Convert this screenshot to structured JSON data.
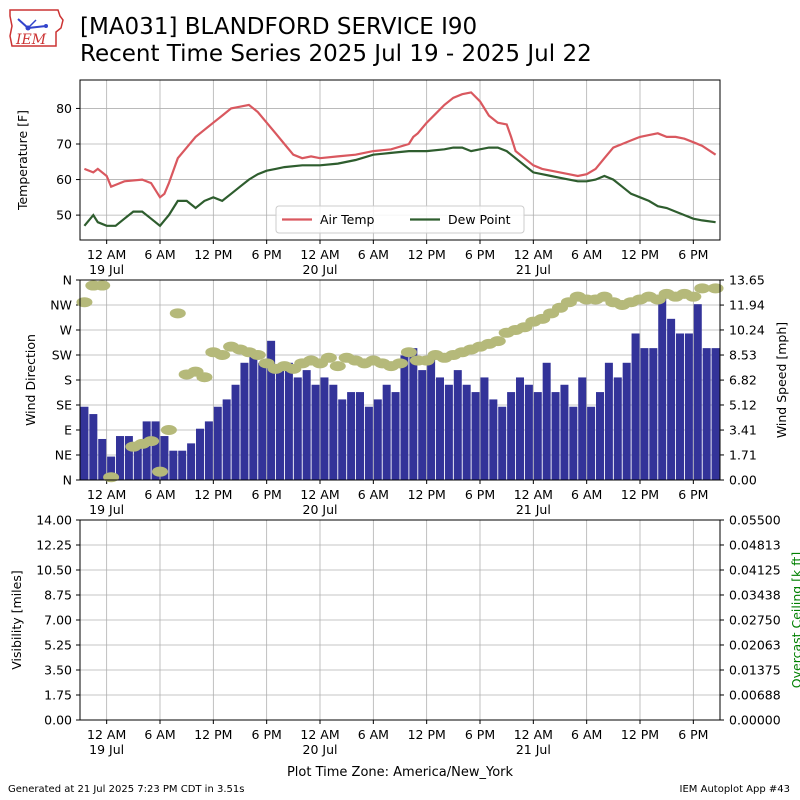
{
  "header": {
    "title_line1": "[MA031] BLANDFORD SERVICE I90",
    "title_line2": "Recent Time Series 2025 Jul 19 - 2025 Jul 22",
    "logo_text": "IEM"
  },
  "footer": {
    "generated": "Generated at 21 Jul 2025 7:23 PM CDT in 3.51s",
    "app": "IEM Autoplot App #43",
    "timezone": "Plot Time Zone: America/New_York"
  },
  "colors": {
    "air_temp": "#d9585f",
    "dew_point": "#2e5d2e",
    "wind_speed_bar": "#333399",
    "wind_dir_marker": "#b5b97a",
    "ceiling_axis": "#008000",
    "grid": "#b0b0b0"
  },
  "chart_data": [
    {
      "type": "line",
      "ylabel": "Temperature [F]",
      "ylim": [
        43,
        88
      ],
      "yticks": [
        50,
        60,
        70,
        80
      ],
      "x_units": "hours since 2025-07-19 00:00",
      "xlim": [
        -3,
        69
      ],
      "x_ticks": [
        0,
        6,
        12,
        18,
        24,
        30,
        36,
        42,
        48,
        54,
        60,
        66
      ],
      "x_tick_labels": [
        "12 AM",
        "6 AM",
        "12 PM",
        "6 PM",
        "12 AM",
        "6 AM",
        "12 PM",
        "6 PM",
        "12 AM",
        "6 AM",
        "12 PM",
        "6 PM"
      ],
      "x_date_labels": [
        {
          "at": 0,
          "label": "19 Jul"
        },
        {
          "at": 24,
          "label": "20 Jul"
        },
        {
          "at": 48,
          "label": "21 Jul"
        }
      ],
      "grid": true,
      "legend": "bottom-center",
      "series": [
        {
          "name": "Air Temp",
          "x": [
            -2.5,
            -1.5,
            -1,
            0,
            0.5,
            1,
            2,
            4,
            5,
            6,
            6.5,
            7,
            8,
            9,
            10,
            11,
            12,
            13,
            14,
            15,
            16,
            17,
            18,
            19,
            20,
            21,
            22,
            23,
            24,
            26,
            28,
            30,
            32,
            34,
            34.5,
            35,
            36,
            37,
            38,
            39,
            40,
            41,
            42,
            43,
            44,
            45,
            45.5,
            46,
            47,
            48,
            49,
            50,
            51,
            52,
            53,
            54,
            55,
            56,
            57,
            58,
            59,
            60,
            61,
            62,
            63,
            64,
            65,
            66,
            67,
            68.5
          ],
          "values": [
            63,
            62,
            63,
            61,
            58,
            58.5,
            59.5,
            60,
            59,
            55,
            56,
            59,
            66,
            69,
            72,
            74,
            76,
            78,
            80,
            80.5,
            81,
            79,
            76,
            73,
            70,
            67,
            66,
            66.5,
            66,
            66.5,
            67,
            68,
            68.5,
            70,
            72,
            73,
            76,
            78.5,
            81,
            83,
            84,
            84.5,
            82,
            78,
            76,
            75.5,
            72,
            68,
            66,
            64,
            63,
            62.5,
            62,
            61.5,
            61,
            61.5,
            63,
            66,
            69,
            70,
            71,
            72,
            72.5,
            73,
            72,
            72,
            71.5,
            70.5,
            69.5,
            67
          ]
        },
        {
          "name": "Dew Point",
          "x": [
            -2.5,
            -1.5,
            -1,
            0,
            1,
            2,
            3,
            4,
            5,
            6,
            6.5,
            7,
            8,
            9,
            10,
            11,
            12,
            13,
            14,
            15,
            16,
            17,
            18,
            19,
            20,
            22,
            24,
            26,
            28,
            30,
            32,
            34,
            36,
            38,
            39,
            40,
            41,
            42,
            43,
            44,
            45,
            46,
            47,
            48,
            49,
            50,
            51,
            52,
            53,
            54,
            55,
            56,
            57,
            58,
            59,
            60,
            61,
            62,
            63,
            64,
            65,
            66,
            67,
            68.5
          ],
          "values": [
            47,
            50,
            48,
            47,
            47,
            49,
            51,
            51,
            49,
            47,
            48.5,
            50,
            54,
            54,
            52,
            54,
            55,
            54,
            56,
            58,
            60,
            61.5,
            62.5,
            63,
            63.5,
            64,
            64,
            64.5,
            65.5,
            67,
            67.5,
            68,
            68,
            68.5,
            69,
            69,
            68,
            68.5,
            69,
            69,
            68,
            66,
            64,
            62,
            61.5,
            61,
            60.5,
            60,
            59.5,
            59.5,
            60,
            61,
            60,
            58,
            56,
            55,
            54,
            52.5,
            52,
            51,
            50,
            49,
            48.5,
            48
          ]
        }
      ]
    },
    {
      "type": "bar",
      "ylabel": "Wind Direction",
      "y2label": "Wind Speed [mph]",
      "direction_ticks": [
        "N",
        "NW",
        "W",
        "SW",
        "S",
        "SE",
        "E",
        "NE",
        "N"
      ],
      "direction_tick_values": [
        360,
        315,
        270,
        225,
        180,
        135,
        90,
        45,
        0
      ],
      "y2lim": [
        0,
        13.65
      ],
      "y2ticks": [
        "0.00",
        "1.71",
        "3.41",
        "5.12",
        "6.82",
        "8.53",
        "10.24",
        "11.94",
        "13.65"
      ],
      "grid": true,
      "series": [
        {
          "name": "Wind Speed",
          "x": [
            -2.5,
            -1.5,
            -0.5,
            0.5,
            1.5,
            2.5,
            3.5,
            4.5,
            5.5,
            6.5,
            7.5,
            8.5,
            9.5,
            10.5,
            11.5,
            12.5,
            13.5,
            14.5,
            15.5,
            16.5,
            17.5,
            18.5,
            19.5,
            20.5,
            21.5,
            22.5,
            23.5,
            24.5,
            25.5,
            26.5,
            27.5,
            28.5,
            29.5,
            30.5,
            31.5,
            32.5,
            33.5,
            34.5,
            35.5,
            36.5,
            37.5,
            38.5,
            39.5,
            40.5,
            41.5,
            42.5,
            43.5,
            44.5,
            45.5,
            46.5,
            47.5,
            48.5,
            49.5,
            50.5,
            51.5,
            52.5,
            53.5,
            54.5,
            55.5,
            56.5,
            57.5,
            58.5,
            59.5,
            60.5,
            61.5,
            62.5,
            63.5,
            64.5,
            65.5,
            66.5,
            67.5,
            68.5
          ],
          "values": [
            5.0,
            4.5,
            2.8,
            1.6,
            3.0,
            3.0,
            2.5,
            4.0,
            4.0,
            3.0,
            2.0,
            2.0,
            2.5,
            3.5,
            4.0,
            5.0,
            5.5,
            6.5,
            8.0,
            8.5,
            8.0,
            9.5,
            7.5,
            8.0,
            7.0,
            7.5,
            6.5,
            7.0,
            6.5,
            5.5,
            6.0,
            6.0,
            5.0,
            5.5,
            6.5,
            6.0,
            8.5,
            9.0,
            7.5,
            8.5,
            7.0,
            6.5,
            7.5,
            6.5,
            6.0,
            7.0,
            5.5,
            5.0,
            6.0,
            7.0,
            6.5,
            6.0,
            8.0,
            6.0,
            6.5,
            5.0,
            7.0,
            5.0,
            6.0,
            8.0,
            7.0,
            8.0,
            10.0,
            9.0,
            9.0,
            12.5,
            11.0,
            10.0,
            10.0,
            12.0,
            9.0,
            9.0
          ]
        },
        {
          "name": "Wind Direction",
          "x": [
            -2.5,
            -1.5,
            -0.5,
            0.5,
            3,
            4,
            5,
            6,
            7,
            8,
            9,
            10,
            11,
            12,
            13,
            14,
            15,
            16,
            17,
            18,
            19,
            20,
            21,
            22,
            23,
            24,
            25,
            26,
            27,
            28,
            29,
            30,
            31,
            32,
            33,
            34,
            35,
            36,
            37,
            38,
            39,
            40,
            41,
            42,
            43,
            44,
            45,
            46,
            47,
            48,
            49,
            50,
            51,
            52,
            53,
            54,
            55,
            56,
            57,
            58,
            59,
            60,
            61,
            62,
            63,
            64,
            65,
            66,
            67,
            68.5
          ],
          "values": [
            320,
            350,
            350,
            5,
            60,
            65,
            70,
            15,
            90,
            300,
            190,
            195,
            185,
            230,
            225,
            240,
            235,
            230,
            225,
            210,
            200,
            205,
            200,
            210,
            215,
            210,
            220,
            205,
            220,
            215,
            210,
            215,
            210,
            205,
            210,
            230,
            215,
            215,
            225,
            220,
            225,
            230,
            235,
            240,
            245,
            250,
            265,
            270,
            275,
            285,
            290,
            300,
            310,
            320,
            330,
            325,
            325,
            330,
            320,
            315,
            320,
            325,
            330,
            325,
            335,
            330,
            335,
            330,
            345,
            345
          ]
        }
      ]
    },
    {
      "type": "line",
      "ylabel": "Visibility [miles]",
      "y2label": "Overcast Ceiling [k ft]",
      "ylim": [
        0,
        14
      ],
      "yticks": [
        "0.00",
        "1.75",
        "3.50",
        "5.25",
        "7.00",
        "8.75",
        "10.50",
        "12.25",
        "14.00"
      ],
      "y2lim": [
        0,
        0.055
      ],
      "y2ticks": [
        "0.00000",
        "0.00688",
        "0.01375",
        "0.02063",
        "0.02750",
        "0.03438",
        "0.04125",
        "0.04813",
        "0.05500"
      ],
      "grid": true,
      "series": []
    }
  ]
}
